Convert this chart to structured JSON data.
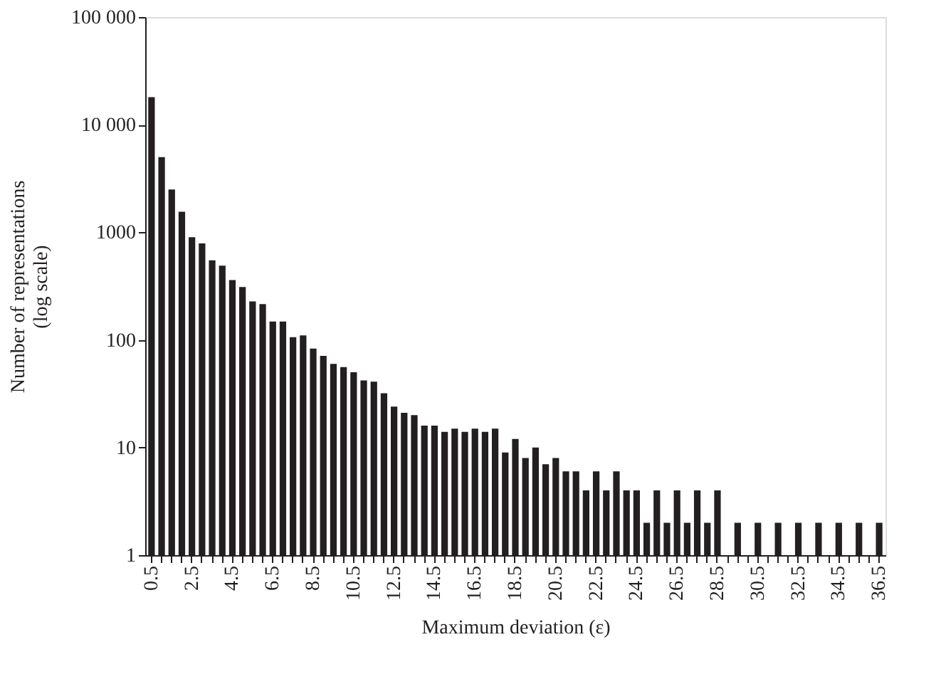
{
  "chart_data": {
    "type": "bar",
    "xlabel": "Maximum deviation (ε)",
    "ylabel": "Number of representations\n(log scale)",
    "categories": [
      "0.5",
      null,
      null,
      null,
      "2.5",
      null,
      null,
      null,
      "4.5",
      null,
      null,
      null,
      "6.5",
      null,
      null,
      null,
      "8.5",
      null,
      null,
      null,
      "10.5",
      null,
      null,
      null,
      "12.5",
      null,
      null,
      null,
      "14.5",
      null,
      null,
      null,
      "16.5",
      null,
      null,
      null,
      "18.5",
      null,
      null,
      null,
      "20.5",
      null,
      null,
      null,
      "22.5",
      null,
      null,
      null,
      "24.5",
      null,
      null,
      null,
      "26.5",
      null,
      null,
      null,
      "28.5",
      null,
      null,
      null,
      "30.5",
      null,
      null,
      null,
      "32.5",
      null,
      null,
      null,
      "34.5",
      null,
      null,
      null,
      "36.5"
    ],
    "values": [
      18000,
      5000,
      2500,
      1550,
      900,
      790,
      550,
      490,
      360,
      310,
      228,
      215,
      148,
      148,
      106,
      110,
      83,
      71,
      60,
      56,
      50,
      42,
      41,
      32,
      24,
      21,
      20,
      16,
      16,
      14,
      15,
      14,
      15,
      14,
      15,
      9,
      12,
      8,
      10,
      7,
      8,
      6,
      6,
      4,
      6,
      4,
      6,
      4,
      4,
      2,
      4,
      2,
      4,
      2,
      4,
      2,
      4,
      null,
      2,
      null,
      2,
      null,
      2,
      null,
      2,
      null,
      2,
      null,
      2,
      null,
      2,
      null,
      2
    ],
    "color": "#231f20",
    "log": "y",
    "grid": false,
    "ylim": [
      1,
      100000
    ],
    "yticks": [
      1,
      10,
      100,
      1000,
      {
        "value": 10000,
        "label": "10 000"
      },
      {
        "value": 100000,
        "label": "100 000"
      }
    ]
  }
}
